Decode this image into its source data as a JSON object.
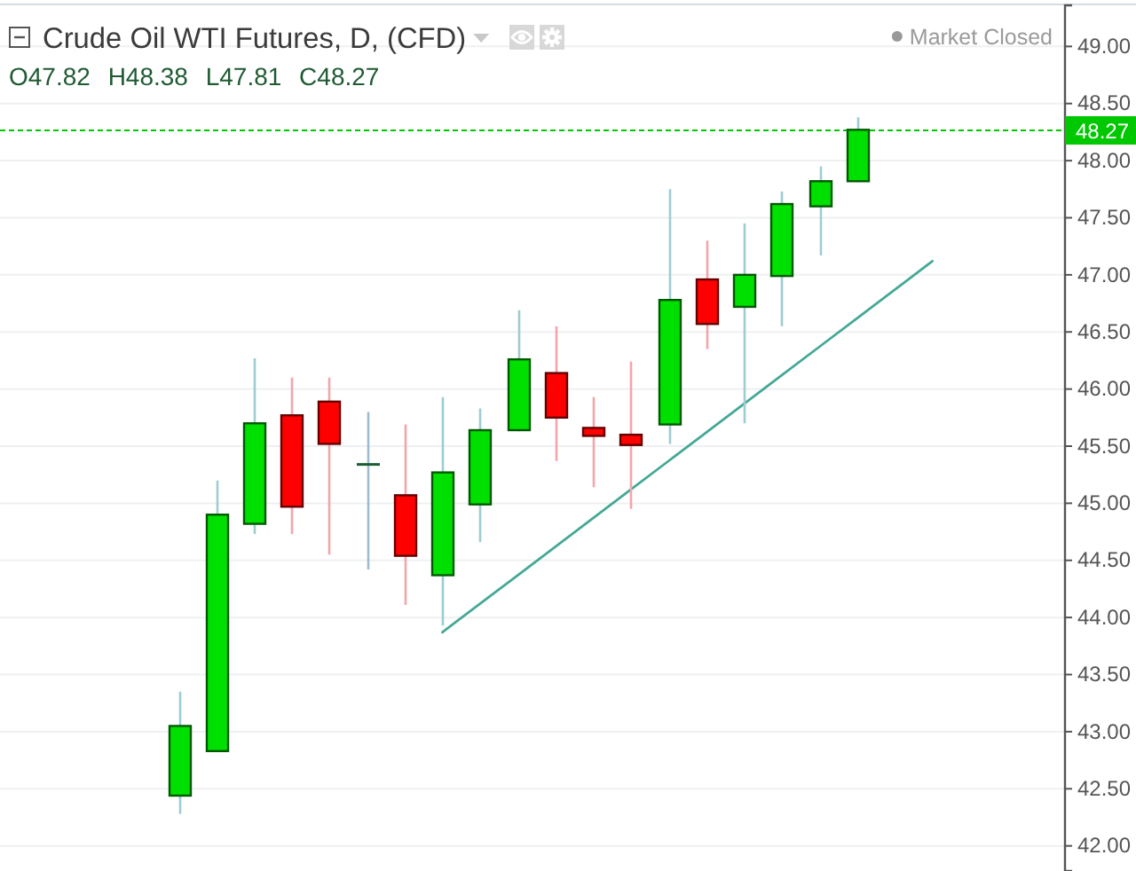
{
  "chart_data": {
    "type": "candlestick",
    "title": "Crude Oil WTI Futures, D, (CFD)",
    "subtitle": "O47.82 H48.38 L47.81 C48.27",
    "annotations": [
      "Market Closed"
    ],
    "categories": [
      null,
      null,
      null,
      null,
      null,
      null,
      null,
      null,
      null,
      null,
      null,
      null,
      null,
      null,
      null,
      null,
      null,
      null,
      null,
      null,
      null,
      null,
      null,
      null,
      null,
      null,
      null
    ],
    "series": [
      {
        "type": "candlestick",
        "ohlc": [
          null,
          null,
          null,
          [
            42.44,
            43.35,
            42.28,
            43.05
          ],
          [
            42.83,
            45.2,
            42.83,
            44.9
          ],
          [
            44.82,
            46.27,
            44.73,
            45.7
          ],
          [
            45.77,
            46.1,
            44.73,
            44.97
          ],
          [
            45.89,
            46.1,
            44.55,
            45.52
          ],
          [
            45.34,
            45.8,
            44.42,
            45.34
          ],
          [
            45.07,
            45.69,
            44.11,
            44.54
          ],
          [
            44.37,
            45.93,
            43.93,
            45.27
          ],
          [
            44.99,
            45.83,
            44.66,
            45.64
          ],
          [
            45.64,
            46.69,
            45.63,
            46.26
          ],
          [
            46.14,
            46.55,
            45.37,
            45.75
          ],
          [
            45.66,
            45.93,
            45.14,
            45.59
          ],
          [
            45.6,
            46.24,
            44.95,
            45.51
          ],
          [
            45.69,
            47.75,
            45.52,
            46.78
          ],
          [
            46.96,
            47.3,
            46.35,
            46.57
          ],
          [
            46.72,
            47.45,
            45.7,
            47.0
          ],
          [
            46.99,
            47.73,
            46.55,
            47.62
          ],
          [
            47.6,
            47.95,
            47.17,
            47.82
          ],
          [
            47.82,
            48.38,
            47.81,
            48.27
          ],
          null,
          null,
          null,
          null,
          null
        ],
        "colors": [
          null,
          null,
          null,
          "#00e000",
          "#00e000",
          "#00e000",
          "#ff0000",
          "#ff0000",
          "#1e5c34",
          "#ff0000",
          "#00e000",
          "#00e000",
          "#00e000",
          "#ff0000",
          "#ff0000",
          "#ff0000",
          "#00e000",
          "#ff0000",
          "#00e000",
          "#00e000",
          "#00e000",
          "#00e000",
          null,
          null,
          null,
          null,
          null
        ]
      },
      {
        "type": "line",
        "values": [
          null,
          null,
          null,
          null,
          null,
          null,
          null,
          null,
          null,
          null,
          43.87,
          44.12,
          44.37,
          44.62,
          44.87,
          45.12,
          45.37,
          45.62,
          45.87,
          46.12,
          46.37,
          46.62,
          46.87,
          47.12,
          null,
          null,
          null
        ],
        "color": "#45a896"
      }
    ],
    "ylim": [
      41.78,
      49.36
    ],
    "yticks": [
      {
        "value": 42,
        "label": "42.00"
      },
      {
        "value": 42.5,
        "label": "42.50"
      },
      {
        "value": 43,
        "label": "43.00"
      },
      {
        "value": 43.5,
        "label": "43.50"
      },
      {
        "value": 44,
        "label": "44.00"
      },
      {
        "value": 44.5,
        "label": "44.50"
      },
      {
        "value": 45,
        "label": "45.00"
      },
      {
        "value": 45.5,
        "label": "45.50"
      },
      {
        "value": 46,
        "label": "46.00"
      },
      {
        "value": 46.5,
        "label": "46.50"
      },
      {
        "value": 47,
        "label": "47.00"
      },
      {
        "value": 47.5,
        "label": "47.50"
      },
      {
        "value": 48,
        "label": "48.00"
      },
      {
        "value": 48.5,
        "label": "48.50"
      },
      {
        "value": 49,
        "label": "49.00"
      }
    ],
    "grid": "y",
    "tick_labels": "y",
    "ref_lines": [
      {
        "axis": "y",
        "value": 48.27,
        "label": "48.27",
        "color": "#00c800",
        "line_style": "dashed"
      }
    ]
  }
}
